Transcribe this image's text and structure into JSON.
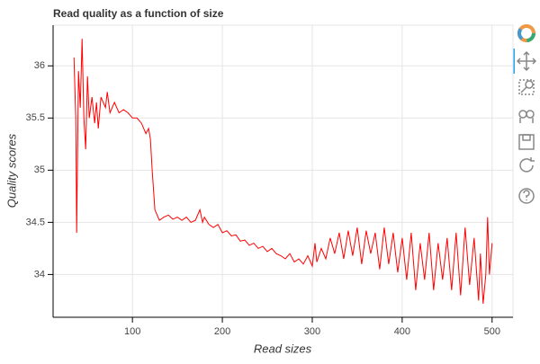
{
  "chart_data": {
    "type": "line",
    "title": "Read quality as a function of size",
    "x_label": "Read sizes",
    "y_label": "Quality scores",
    "x": [
      35,
      37,
      38,
      40,
      42,
      44,
      46,
      48,
      50,
      52,
      55,
      58,
      60,
      62,
      65,
      70,
      72,
      75,
      80,
      85,
      90,
      95,
      100,
      105,
      110,
      115,
      118,
      120,
      122,
      125,
      130,
      135,
      140,
      145,
      150,
      155,
      160,
      165,
      170,
      175,
      178,
      180,
      185,
      190,
      195,
      200,
      205,
      210,
      215,
      220,
      225,
      230,
      235,
      240,
      245,
      250,
      255,
      260,
      265,
      270,
      275,
      280,
      285,
      290,
      295,
      300,
      303,
      305,
      310,
      315,
      320,
      325,
      330,
      335,
      340,
      345,
      350,
      355,
      360,
      365,
      370,
      375,
      380,
      385,
      390,
      395,
      400,
      405,
      410,
      415,
      420,
      425,
      430,
      435,
      440,
      445,
      450,
      455,
      460,
      465,
      470,
      475,
      480,
      485,
      487,
      490,
      493,
      495,
      497,
      500
    ],
    "series": [
      {
        "color": "#ff0000",
        "values": [
          36.08,
          35.5,
          34.4,
          35.95,
          35.6,
          36.26,
          35.5,
          35.2,
          35.9,
          35.5,
          35.7,
          35.45,
          35.65,
          35.4,
          35.7,
          35.6,
          35.75,
          35.55,
          35.65,
          35.55,
          35.58,
          35.55,
          35.5,
          35.5,
          35.45,
          35.35,
          35.4,
          35.3,
          35.0,
          34.62,
          34.52,
          34.55,
          34.57,
          34.53,
          34.55,
          34.52,
          34.55,
          34.5,
          34.52,
          34.62,
          34.5,
          34.55,
          34.48,
          34.45,
          34.48,
          34.4,
          34.42,
          34.37,
          34.38,
          34.32,
          34.33,
          34.28,
          34.3,
          34.25,
          34.27,
          34.22,
          34.25,
          34.2,
          34.18,
          34.15,
          34.2,
          34.12,
          34.15,
          34.1,
          34.18,
          34.08,
          34.3,
          34.12,
          34.25,
          34.15,
          34.35,
          34.2,
          34.4,
          34.15,
          34.42,
          34.18,
          34.45,
          34.1,
          34.42,
          34.2,
          34.4,
          34.05,
          34.45,
          34.1,
          34.4,
          34.02,
          34.35,
          33.95,
          34.4,
          33.85,
          34.3,
          33.95,
          34.4,
          33.85,
          34.3,
          33.95,
          34.35,
          33.85,
          34.4,
          33.8,
          34.45,
          33.9,
          34.35,
          33.75,
          34.2,
          33.72,
          34.0,
          34.55,
          34.0,
          34.3
        ]
      }
    ],
    "xlim": [
      11.75,
      523.25
    ],
    "ylim": [
      33.59,
      36.39
    ],
    "xticks": [
      100,
      200,
      300,
      400,
      500
    ],
    "yticks": [
      34,
      34.5,
      35,
      35.5,
      36
    ],
    "grid": true
  }
}
